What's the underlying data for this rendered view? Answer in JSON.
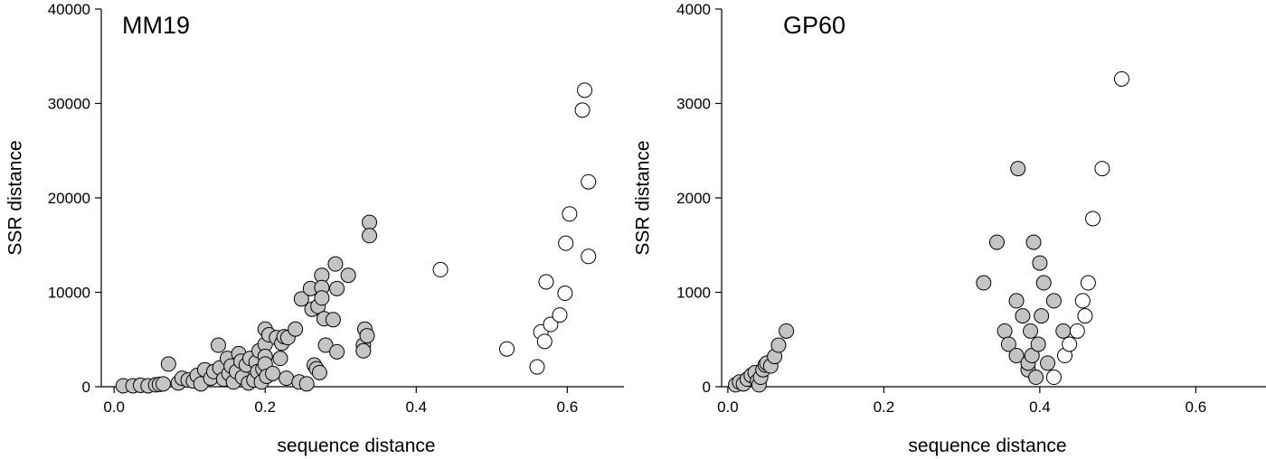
{
  "chart_data": [
    {
      "type": "scatter",
      "title": "MM19",
      "xlabel": "sequence distance",
      "ylabel": "SSR distance",
      "xlim": [
        -0.017,
        0.675
      ],
      "ylim": [
        0,
        40000
      ],
      "xticks": [
        0.0,
        0.2,
        0.4,
        0.6
      ],
      "xtick_labels": [
        "0.0",
        "0.2",
        "0.4",
        "0.6"
      ],
      "yticks": [
        0,
        10000,
        20000,
        30000,
        40000
      ],
      "ytick_labels": [
        "0",
        "10000",
        "20000",
        "30000",
        "40000"
      ],
      "grid": false,
      "series": [
        {
          "name": "grey",
          "color": "#c4c4c4",
          "points": [
            [
              0.012,
              100
            ],
            [
              0.025,
              100
            ],
            [
              0.035,
              150
            ],
            [
              0.045,
              100
            ],
            [
              0.055,
              200
            ],
            [
              0.06,
              250
            ],
            [
              0.065,
              300
            ],
            [
              0.072,
              2400
            ],
            [
              0.085,
              400
            ],
            [
              0.09,
              900
            ],
            [
              0.098,
              700
            ],
            [
              0.105,
              600
            ],
            [
              0.11,
              1200
            ],
            [
              0.115,
              300
            ],
            [
              0.12,
              1800
            ],
            [
              0.128,
              900
            ],
            [
              0.132,
              1600
            ],
            [
              0.138,
              4400
            ],
            [
              0.14,
              2000
            ],
            [
              0.145,
              800
            ],
            [
              0.15,
              3000
            ],
            [
              0.152,
              1400
            ],
            [
              0.155,
              2200
            ],
            [
              0.158,
              500
            ],
            [
              0.162,
              1600
            ],
            [
              0.165,
              3500
            ],
            [
              0.168,
              2700
            ],
            [
              0.17,
              1000
            ],
            [
              0.175,
              2300
            ],
            [
              0.178,
              400
            ],
            [
              0.18,
              3000
            ],
            [
              0.185,
              700
            ],
            [
              0.188,
              2600
            ],
            [
              0.19,
              1600
            ],
            [
              0.192,
              3800
            ],
            [
              0.195,
              500
            ],
            [
              0.197,
              1900
            ],
            [
              0.2,
              6100
            ],
            [
              0.2,
              4500
            ],
            [
              0.2,
              3200
            ],
            [
              0.2,
              2400
            ],
            [
              0.202,
              1100
            ],
            [
              0.205,
              5500
            ],
            [
              0.21,
              1400
            ],
            [
              0.215,
              5200
            ],
            [
              0.22,
              3000
            ],
            [
              0.222,
              4600
            ],
            [
              0.225,
              5300
            ],
            [
              0.228,
              900
            ],
            [
              0.23,
              5200
            ],
            [
              0.24,
              6100
            ],
            [
              0.245,
              500
            ],
            [
              0.248,
              9300
            ],
            [
              0.255,
              300
            ],
            [
              0.26,
              10400
            ],
            [
              0.262,
              8200
            ],
            [
              0.265,
              2300
            ],
            [
              0.268,
              1900
            ],
            [
              0.27,
              8500
            ],
            [
              0.272,
              1500
            ],
            [
              0.275,
              11800
            ],
            [
              0.275,
              10500
            ],
            [
              0.275,
              9400
            ],
            [
              0.278,
              7200
            ],
            [
              0.28,
              4400
            ],
            [
              0.29,
              7100
            ],
            [
              0.293,
              13000
            ],
            [
              0.295,
              10400
            ],
            [
              0.295,
              3700
            ],
            [
              0.31,
              11800
            ],
            [
              0.33,
              4400
            ],
            [
              0.33,
              3800
            ],
            [
              0.332,
              6100
            ],
            [
              0.335,
              5400
            ],
            [
              0.338,
              17400
            ],
            [
              0.338,
              16000
            ]
          ]
        },
        {
          "name": "white",
          "color": "#ffffff",
          "points": [
            [
              0.432,
              12400
            ],
            [
              0.52,
              4000
            ],
            [
              0.56,
              2100
            ],
            [
              0.565,
              5800
            ],
            [
              0.57,
              4800
            ],
            [
              0.572,
              11100
            ],
            [
              0.578,
              6600
            ],
            [
              0.59,
              7600
            ],
            [
              0.597,
              9900
            ],
            [
              0.598,
              15200
            ],
            [
              0.603,
              18300
            ],
            [
              0.62,
              29300
            ],
            [
              0.623,
              31400
            ],
            [
              0.628,
              13800
            ],
            [
              0.628,
              21700
            ]
          ]
        }
      ]
    },
    {
      "type": "scatter",
      "title": "GP60",
      "xlabel": "sequence distance",
      "ylabel": "SSR distance",
      "xlim": [
        -0.008,
        0.69
      ],
      "ylim": [
        0,
        4000
      ],
      "xticks": [
        0.0,
        0.2,
        0.4,
        0.6
      ],
      "xtick_labels": [
        "0.0",
        "0.2",
        "0.4",
        "0.6"
      ],
      "yticks": [
        0,
        1000,
        2000,
        3000,
        4000
      ],
      "ytick_labels": [
        "0",
        "1000",
        "2000",
        "3000",
        "4000"
      ],
      "grid": false,
      "series": [
        {
          "name": "grey",
          "color": "#c4c4c4",
          "points": [
            [
              0.01,
              20
            ],
            [
              0.015,
              50
            ],
            [
              0.02,
              30
            ],
            [
              0.025,
              80
            ],
            [
              0.03,
              120
            ],
            [
              0.035,
              150
            ],
            [
              0.038,
              60
            ],
            [
              0.04,
              20
            ],
            [
              0.042,
              100
            ],
            [
              0.045,
              180
            ],
            [
              0.048,
              230
            ],
            [
              0.05,
              250
            ],
            [
              0.055,
              220
            ],
            [
              0.06,
              320
            ],
            [
              0.065,
              440
            ],
            [
              0.075,
              590
            ],
            [
              0.328,
              1100
            ],
            [
              0.345,
              1530
            ],
            [
              0.355,
              590
            ],
            [
              0.36,
              450
            ],
            [
              0.37,
              330
            ],
            [
              0.37,
              910
            ],
            [
              0.372,
              2310
            ],
            [
              0.378,
              750
            ],
            [
              0.385,
              180
            ],
            [
              0.385,
              250
            ],
            [
              0.388,
              590
            ],
            [
              0.39,
              330
            ],
            [
              0.392,
              1530
            ],
            [
              0.395,
              100
            ],
            [
              0.398,
              450
            ],
            [
              0.4,
              1310
            ],
            [
              0.402,
              750
            ],
            [
              0.405,
              1100
            ],
            [
              0.41,
              250
            ],
            [
              0.418,
              910
            ],
            [
              0.43,
              590
            ]
          ]
        },
        {
          "name": "white",
          "color": "#ffffff",
          "points": [
            [
              0.418,
              100
            ],
            [
              0.432,
              330
            ],
            [
              0.438,
              450
            ],
            [
              0.448,
              590
            ],
            [
              0.455,
              910
            ],
            [
              0.458,
              750
            ],
            [
              0.462,
              1100
            ],
            [
              0.468,
              1780
            ],
            [
              0.48,
              2310
            ],
            [
              0.505,
              3260
            ]
          ]
        }
      ]
    }
  ]
}
